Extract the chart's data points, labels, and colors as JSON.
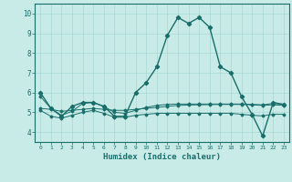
{
  "xlabel": "Humidex (Indice chaleur)",
  "background_color": "#c8ebe8",
  "grid_color": "#a8d8d4",
  "line_color": "#1a6e6a",
  "xlim": [
    -0.5,
    23.5
  ],
  "ylim": [
    3.5,
    10.5
  ],
  "yticks": [
    4,
    5,
    6,
    7,
    8,
    9,
    10
  ],
  "xticks": [
    0,
    1,
    2,
    3,
    4,
    5,
    6,
    7,
    8,
    9,
    10,
    11,
    12,
    13,
    14,
    15,
    16,
    17,
    18,
    19,
    20,
    21,
    22,
    23
  ],
  "series": {
    "main": [
      6.0,
      5.2,
      4.8,
      5.3,
      5.5,
      5.5,
      5.3,
      4.8,
      4.8,
      6.0,
      6.5,
      7.3,
      8.9,
      9.8,
      9.5,
      9.8,
      9.3,
      7.3,
      7.0,
      5.8,
      4.9,
      3.8,
      5.5,
      5.4
    ],
    "line2": [
      5.2,
      5.15,
      5.05,
      5.1,
      5.15,
      5.2,
      5.15,
      5.1,
      5.1,
      5.15,
      5.2,
      5.25,
      5.3,
      5.35,
      5.37,
      5.38,
      5.39,
      5.4,
      5.4,
      5.4,
      5.38,
      5.35,
      5.38,
      5.35
    ],
    "line3": [
      5.8,
      5.2,
      4.85,
      5.05,
      5.45,
      5.5,
      5.3,
      5.0,
      4.95,
      5.1,
      5.25,
      5.35,
      5.4,
      5.42,
      5.42,
      5.42,
      5.42,
      5.42,
      5.42,
      5.42,
      5.4,
      5.38,
      5.45,
      5.4
    ],
    "line4": [
      5.1,
      4.8,
      4.7,
      4.85,
      5.0,
      5.1,
      4.95,
      4.75,
      4.75,
      4.85,
      4.9,
      4.95,
      4.95,
      4.95,
      4.95,
      4.95,
      4.95,
      4.95,
      4.95,
      4.9,
      4.85,
      4.82,
      4.9,
      4.9
    ]
  }
}
